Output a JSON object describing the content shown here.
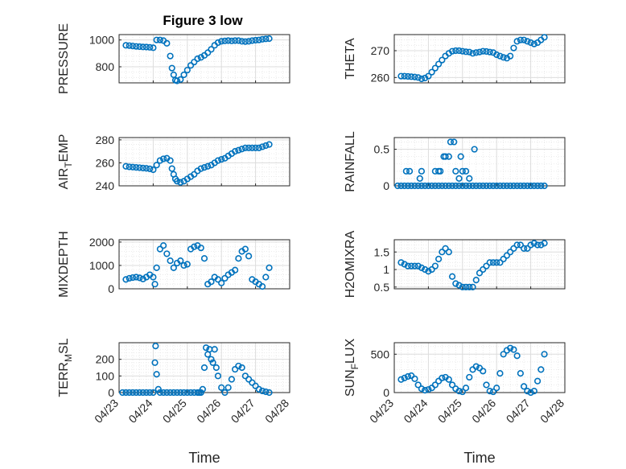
{
  "figure": {
    "title": "Figure 3 low",
    "marker_color": "#0072bd"
  },
  "chart_data": [
    {
      "type": "scatter",
      "title": "Figure 3 low",
      "ylabel": "PRESSURE",
      "xlim": [
        "04/23",
        "04/28"
      ],
      "ylim": [
        680,
        1040
      ],
      "yticks": [
        800,
        1000
      ],
      "x": [
        23.2,
        23.3,
        23.4,
        23.5,
        23.6,
        23.7,
        23.8,
        23.9,
        24.0,
        24.1,
        24.2,
        24.3,
        24.4,
        24.5,
        24.55,
        24.6,
        24.65,
        24.7,
        24.8,
        24.9,
        25.0,
        25.1,
        25.2,
        25.3,
        25.4,
        25.5,
        25.6,
        25.7,
        25.8,
        25.9,
        26.0,
        26.1,
        26.2,
        26.3,
        26.4,
        26.5,
        26.6,
        26.7,
        26.8,
        26.9,
        27.0,
        27.1,
        27.2,
        27.3,
        27.4
      ],
      "y": [
        960,
        958,
        955,
        952,
        950,
        948,
        947,
        945,
        942,
        1000,
        1000,
        995,
        975,
        880,
        790,
        740,
        700,
        695,
        705,
        740,
        775,
        810,
        835,
        860,
        870,
        885,
        905,
        930,
        960,
        980,
        990,
        993,
        995,
        993,
        995,
        995,
        990,
        988,
        990,
        995,
        998,
        1000,
        1005,
        1008,
        1010
      ]
    },
    {
      "type": "scatter",
      "ylabel": "THETA",
      "xlim": [
        "04/23",
        "04/28"
      ],
      "ylim": [
        258,
        276
      ],
      "yticks": [
        260,
        270
      ],
      "x": [
        23.2,
        23.3,
        23.4,
        23.5,
        23.6,
        23.7,
        23.8,
        23.9,
        24.0,
        24.1,
        24.2,
        24.3,
        24.4,
        24.5,
        24.6,
        24.7,
        24.8,
        24.9,
        25.0,
        25.1,
        25.2,
        25.3,
        25.4,
        25.5,
        25.6,
        25.7,
        25.8,
        25.9,
        26.0,
        26.1,
        26.2,
        26.3,
        26.4,
        26.5,
        26.6,
        26.7,
        26.8,
        26.9,
        27.0,
        27.1,
        27.2,
        27.3,
        27.4
      ],
      "y": [
        260.5,
        260.5,
        260.4,
        260.3,
        260.2,
        260.0,
        259.5,
        259.8,
        260.5,
        262.0,
        263.5,
        265.0,
        266.5,
        268.0,
        269.0,
        269.8,
        270.0,
        270.0,
        269.8,
        269.6,
        269.5,
        269.0,
        269.3,
        269.5,
        269.8,
        269.7,
        269.5,
        269.3,
        268.5,
        268.0,
        267.5,
        267.2,
        268.0,
        271.0,
        273.5,
        274.0,
        274.0,
        273.5,
        273.0,
        272.5,
        273.0,
        274.0,
        275.0
      ]
    },
    {
      "type": "scatter",
      "ylabel": "AIR_TEMP",
      "xlim": [
        "04/23",
        "04/28"
      ],
      "ylim": [
        240,
        282
      ],
      "yticks": [
        240,
        260,
        280
      ],
      "x": [
        23.2,
        23.3,
        23.4,
        23.5,
        23.6,
        23.7,
        23.8,
        23.9,
        24.0,
        24.1,
        24.2,
        24.3,
        24.4,
        24.5,
        24.55,
        24.6,
        24.65,
        24.7,
        24.8,
        24.9,
        25.0,
        25.1,
        25.2,
        25.3,
        25.4,
        25.5,
        25.6,
        25.7,
        25.8,
        25.9,
        26.0,
        26.1,
        26.2,
        26.3,
        26.4,
        26.5,
        26.6,
        26.7,
        26.8,
        26.9,
        27.0,
        27.1,
        27.2,
        27.3,
        27.4
      ],
      "y": [
        257,
        256.5,
        256.3,
        256,
        255.8,
        255.5,
        255.2,
        254.8,
        254,
        258,
        262,
        263.5,
        264,
        262,
        255,
        250,
        246,
        244,
        243,
        244,
        246,
        248,
        250,
        253,
        255,
        256,
        257,
        258,
        260,
        262,
        263,
        264,
        266,
        268,
        270,
        271,
        272,
        273,
        273,
        273,
        273,
        273,
        274,
        275,
        276
      ]
    },
    {
      "type": "scatter",
      "ylabel": "RAINFALL",
      "xlim": [
        "04/23",
        "04/28"
      ],
      "ylim": [
        0,
        0.66
      ],
      "yticks": [
        0,
        0.5
      ],
      "x": [
        23.1,
        23.2,
        23.3,
        23.4,
        23.5,
        23.6,
        23.7,
        23.8,
        23.9,
        24.0,
        24.1,
        24.2,
        24.3,
        24.4,
        24.5,
        24.6,
        24.7,
        24.8,
        24.9,
        25.0,
        25.1,
        25.2,
        25.3,
        25.4,
        25.5,
        25.6,
        25.7,
        25.8,
        25.9,
        26.0,
        26.1,
        26.2,
        26.3,
        26.4,
        26.5,
        26.6,
        26.7,
        26.8,
        26.9,
        27.0,
        27.1,
        27.2,
        27.3,
        27.4,
        23.35,
        23.45,
        23.75,
        23.8,
        24.2,
        24.3,
        24.35,
        24.45,
        24.5,
        24.6,
        24.65,
        24.75,
        24.8,
        24.9,
        24.95,
        25.0,
        25.1,
        25.2,
        25.35
      ],
      "y": [
        0,
        0,
        0,
        0,
        0,
        0,
        0,
        0,
        0,
        0,
        0,
        0,
        0,
        0,
        0,
        0,
        0,
        0,
        0,
        0,
        0,
        0,
        0,
        0,
        0,
        0,
        0,
        0,
        0,
        0,
        0,
        0,
        0,
        0,
        0,
        0,
        0,
        0,
        0,
        0,
        0,
        0,
        0,
        0,
        0.2,
        0.2,
        0.1,
        0.2,
        0.2,
        0.2,
        0.2,
        0.4,
        0.4,
        0.4,
        0.6,
        0.6,
        0.2,
        0.1,
        0.4,
        0.2,
        0.2,
        0.1,
        0.5
      ]
    },
    {
      "type": "scatter",
      "ylabel": "MIXDEPTH",
      "xlim": [
        "04/23",
        "04/28"
      ],
      "ylim": [
        0,
        2100
      ],
      "yticks": [
        0,
        1000,
        2000
      ],
      "x": [
        23.2,
        23.3,
        23.4,
        23.5,
        23.6,
        23.7,
        23.8,
        23.9,
        24.0,
        24.05,
        24.1,
        24.2,
        24.3,
        24.4,
        24.5,
        24.6,
        24.7,
        24.8,
        24.9,
        25.0,
        25.1,
        25.2,
        25.3,
        25.4,
        25.5,
        25.6,
        25.7,
        25.8,
        25.9,
        26.0,
        26.1,
        26.2,
        26.3,
        26.4,
        26.5,
        26.6,
        26.7,
        26.8,
        26.9,
        27.0,
        27.1,
        27.2,
        27.3,
        27.4
      ],
      "y": [
        400,
        450,
        480,
        500,
        470,
        420,
        500,
        600,
        500,
        200,
        900,
        1700,
        1850,
        1500,
        1200,
        900,
        1100,
        1200,
        1000,
        1050,
        1700,
        1800,
        1850,
        1750,
        1300,
        200,
        300,
        500,
        400,
        250,
        450,
        600,
        700,
        800,
        1300,
        1600,
        1700,
        1400,
        400,
        300,
        200,
        100,
        500,
        900
      ]
    },
    {
      "type": "scatter",
      "ylabel": "H2OMIXRA",
      "xlim": [
        "04/23",
        "04/28"
      ],
      "ylim": [
        0.45,
        1.85
      ],
      "yticks": [
        0.5,
        1,
        1.5
      ],
      "x": [
        23.2,
        23.3,
        23.4,
        23.5,
        23.6,
        23.7,
        23.8,
        23.9,
        24.0,
        24.1,
        24.2,
        24.3,
        24.4,
        24.5,
        24.6,
        24.7,
        24.8,
        24.9,
        25.0,
        25.1,
        25.2,
        25.3,
        25.4,
        25.5,
        25.6,
        25.7,
        25.8,
        25.9,
        26.0,
        26.1,
        26.2,
        26.3,
        26.4,
        26.5,
        26.6,
        26.7,
        26.8,
        26.9,
        27.0,
        27.1,
        27.2,
        27.3,
        27.4
      ],
      "y": [
        1.2,
        1.15,
        1.1,
        1.1,
        1.1,
        1.1,
        1.05,
        1.0,
        0.95,
        1.0,
        1.1,
        1.3,
        1.5,
        1.6,
        1.5,
        0.8,
        0.6,
        0.55,
        0.5,
        0.5,
        0.5,
        0.5,
        0.7,
        0.9,
        1.0,
        1.1,
        1.2,
        1.2,
        1.2,
        1.2,
        1.3,
        1.4,
        1.5,
        1.6,
        1.7,
        1.7,
        1.6,
        1.6,
        1.7,
        1.75,
        1.7,
        1.7,
        1.75
      ]
    },
    {
      "type": "scatter",
      "ylabel": "TERR_MSL",
      "xlim": [
        "04/23",
        "04/28"
      ],
      "ylim": [
        0,
        300
      ],
      "yticks": [
        0,
        100,
        200
      ],
      "x": [
        23.1,
        23.2,
        23.3,
        23.4,
        23.5,
        23.6,
        23.7,
        23.8,
        23.9,
        24.0,
        24.05,
        24.07,
        24.1,
        24.15,
        24.2,
        24.3,
        24.4,
        24.5,
        24.6,
        24.7,
        24.8,
        24.9,
        25.0,
        25.1,
        25.2,
        25.3,
        25.35,
        25.4,
        25.45,
        25.5,
        25.55,
        25.6,
        25.65,
        25.7,
        25.75,
        25.8,
        25.85,
        25.9,
        26.0,
        26.1,
        26.2,
        26.3,
        26.4,
        26.5,
        26.6,
        26.7,
        26.8,
        26.9,
        27.0,
        27.1,
        27.2,
        27.3,
        27.4
      ],
      "y": [
        0,
        0,
        0,
        0,
        0,
        0,
        0,
        0,
        0,
        0,
        180,
        280,
        110,
        20,
        0,
        0,
        0,
        0,
        0,
        0,
        0,
        0,
        0,
        0,
        0,
        0,
        0,
        0,
        20,
        150,
        270,
        230,
        260,
        200,
        180,
        260,
        150,
        100,
        30,
        0,
        30,
        80,
        140,
        160,
        150,
        100,
        80,
        60,
        40,
        20,
        10,
        5,
        0
      ]
    },
    {
      "type": "scatter",
      "ylabel": "SUN_FLUX",
      "xlim": [
        "04/23",
        "04/28"
      ],
      "ylim": [
        0,
        650
      ],
      "yticks": [
        0,
        500
      ],
      "x": [
        23.2,
        23.3,
        23.4,
        23.5,
        23.6,
        23.7,
        23.8,
        23.9,
        24.0,
        24.1,
        24.2,
        24.3,
        24.4,
        24.5,
        24.6,
        24.7,
        24.8,
        24.9,
        25.0,
        25.1,
        25.2,
        25.3,
        25.4,
        25.5,
        25.6,
        25.7,
        25.8,
        25.9,
        26.0,
        26.1,
        26.2,
        26.3,
        26.4,
        26.5,
        26.6,
        26.7,
        26.8,
        26.9,
        27.0,
        27.1,
        27.2,
        27.3,
        27.4
      ],
      "y": [
        170,
        190,
        210,
        220,
        180,
        100,
        50,
        30,
        40,
        60,
        100,
        150,
        190,
        200,
        170,
        100,
        50,
        20,
        10,
        60,
        200,
        300,
        340,
        320,
        280,
        100,
        20,
        10,
        60,
        250,
        500,
        550,
        580,
        560,
        480,
        250,
        80,
        20,
        0,
        20,
        150,
        300,
        500
      ]
    }
  ],
  "xaxis": {
    "label": "Time",
    "ticks": [
      {
        "value": 23,
        "label": "04/23"
      },
      {
        "value": 24,
        "label": "04/24"
      },
      {
        "value": 25,
        "label": "04/25"
      },
      {
        "value": 26,
        "label": "04/26"
      },
      {
        "value": 27,
        "label": "04/27"
      },
      {
        "value": 28,
        "label": "04/28"
      }
    ]
  }
}
